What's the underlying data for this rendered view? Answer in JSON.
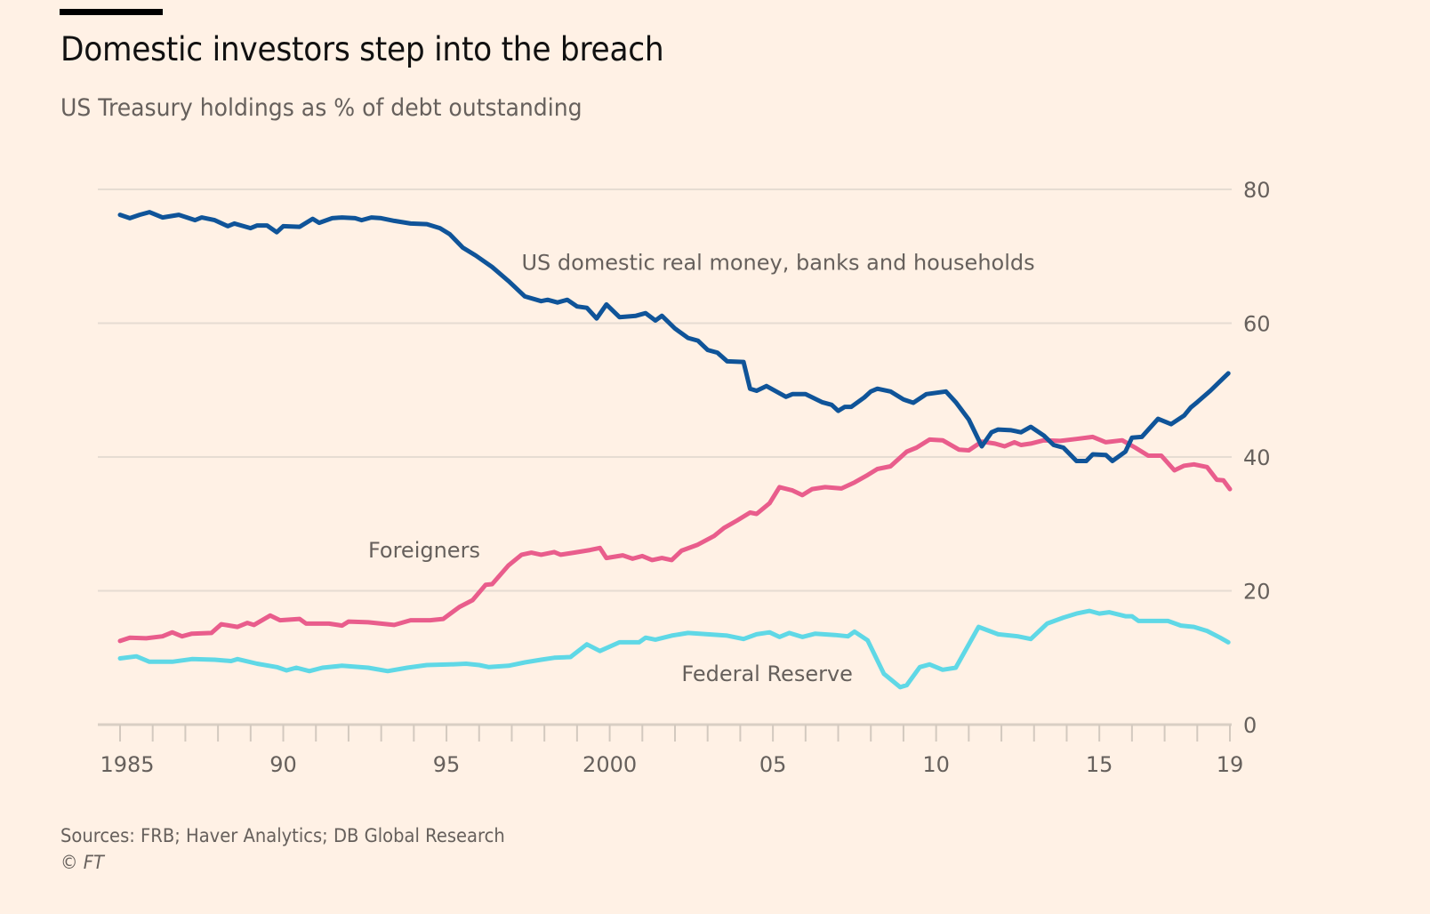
{
  "header": {
    "title": "Domestic investors step into the breach",
    "subtitle": "US Treasury holdings as % of debt outstanding"
  },
  "footer": {
    "sources": "Sources: FRB; Haver Analytics; DB Global Research",
    "copyright_symbol": "©",
    "copyright_brand": "FT"
  },
  "chart_data": {
    "type": "line",
    "title": "Domestic investors step into the breach",
    "subtitle": "US Treasury holdings as % of debt outstanding",
    "xlabel": "",
    "ylabel": "% of debt outstanding",
    "xlim": [
      1985,
      2019
    ],
    "ylim": [
      0,
      80
    ],
    "yticks": [
      0,
      20,
      40,
      60,
      80
    ],
    "y_tick_labels": [
      "0",
      "20",
      "40",
      "60",
      "80"
    ],
    "y_axis_position": "right",
    "xticks": [
      1985,
      1990,
      1995,
      2000,
      2005,
      2010,
      2015,
      2019
    ],
    "x_tick_labels": [
      "1985",
      "90",
      "95",
      "2000",
      "05",
      "10",
      "15",
      "19"
    ],
    "x_minor_ticks": "yearly",
    "grid": true,
    "legend": "none (direct line labels)",
    "series": [
      {
        "name": "US domestic real money, banks and households",
        "color": "#0f5499",
        "label_anchor": {
          "x": 1997.3,
          "y": 68
        },
        "points": [
          [
            1985.0,
            76.2
          ],
          [
            1985.3,
            75.7
          ],
          [
            1985.6,
            76.2
          ],
          [
            1985.9,
            76.6
          ],
          [
            1986.3,
            75.8
          ],
          [
            1986.8,
            76.2
          ],
          [
            1987.3,
            75.4
          ],
          [
            1987.5,
            75.8
          ],
          [
            1987.9,
            75.4
          ],
          [
            1988.3,
            74.5
          ],
          [
            1988.5,
            74.9
          ],
          [
            1989.0,
            74.2
          ],
          [
            1989.2,
            74.6
          ],
          [
            1989.5,
            74.6
          ],
          [
            1989.8,
            73.6
          ],
          [
            1990.0,
            74.5
          ],
          [
            1990.5,
            74.4
          ],
          [
            1990.9,
            75.6
          ],
          [
            1991.1,
            75.0
          ],
          [
            1991.5,
            75.7
          ],
          [
            1991.8,
            75.8
          ],
          [
            1992.2,
            75.7
          ],
          [
            1992.4,
            75.4
          ],
          [
            1992.7,
            75.8
          ],
          [
            1993.0,
            75.7
          ],
          [
            1993.4,
            75.3
          ],
          [
            1993.9,
            74.9
          ],
          [
            1994.4,
            74.8
          ],
          [
            1994.8,
            74.2
          ],
          [
            1995.1,
            73.3
          ],
          [
            1995.5,
            71.3
          ],
          [
            1995.9,
            70.1
          ],
          [
            1996.4,
            68.4
          ],
          [
            1996.9,
            66.3
          ],
          [
            1997.4,
            64.0
          ],
          [
            1997.9,
            63.3
          ],
          [
            1998.1,
            63.5
          ],
          [
            1998.4,
            63.1
          ],
          [
            1998.7,
            63.5
          ],
          [
            1999.0,
            62.5
          ],
          [
            1999.3,
            62.3
          ],
          [
            1999.6,
            60.7
          ],
          [
            1999.9,
            62.8
          ],
          [
            2000.3,
            60.9
          ],
          [
            2000.8,
            61.1
          ],
          [
            2001.1,
            61.5
          ],
          [
            2001.4,
            60.4
          ],
          [
            2001.6,
            61.1
          ],
          [
            2002.0,
            59.2
          ],
          [
            2002.4,
            57.8
          ],
          [
            2002.7,
            57.4
          ],
          [
            2003.0,
            56.0
          ],
          [
            2003.3,
            55.6
          ],
          [
            2003.6,
            54.3
          ],
          [
            2004.1,
            54.2
          ],
          [
            2004.3,
            50.2
          ],
          [
            2004.5,
            49.9
          ],
          [
            2004.8,
            50.6
          ],
          [
            2005.4,
            49.0
          ],
          [
            2005.6,
            49.4
          ],
          [
            2006.0,
            49.4
          ],
          [
            2006.5,
            48.2
          ],
          [
            2006.8,
            47.8
          ],
          [
            2007.0,
            46.9
          ],
          [
            2007.2,
            47.5
          ],
          [
            2007.4,
            47.5
          ],
          [
            2007.8,
            48.9
          ],
          [
            2008.0,
            49.8
          ],
          [
            2008.2,
            50.2
          ],
          [
            2008.6,
            49.8
          ],
          [
            2009.0,
            48.6
          ],
          [
            2009.3,
            48.1
          ],
          [
            2009.7,
            49.4
          ],
          [
            2010.3,
            49.8
          ],
          [
            2010.6,
            48.2
          ],
          [
            2011.0,
            45.6
          ],
          [
            2011.4,
            41.6
          ],
          [
            2011.7,
            43.7
          ],
          [
            2011.9,
            44.1
          ],
          [
            2012.3,
            44.0
          ],
          [
            2012.6,
            43.7
          ],
          [
            2012.9,
            44.5
          ],
          [
            2013.3,
            43.2
          ],
          [
            2013.6,
            41.8
          ],
          [
            2013.9,
            41.4
          ],
          [
            2014.3,
            39.4
          ],
          [
            2014.6,
            39.4
          ],
          [
            2014.8,
            40.4
          ],
          [
            2015.2,
            40.3
          ],
          [
            2015.4,
            39.4
          ],
          [
            2015.8,
            40.8
          ],
          [
            2016.0,
            42.9
          ],
          [
            2016.3,
            43.0
          ],
          [
            2016.8,
            45.7
          ],
          [
            2017.2,
            44.9
          ],
          [
            2017.6,
            46.2
          ],
          [
            2017.8,
            47.4
          ],
          [
            2018.0,
            48.2
          ],
          [
            2018.4,
            49.9
          ],
          [
            2018.8,
            51.8
          ],
          [
            2018.95,
            52.5
          ]
        ]
      },
      {
        "name": "Foreigners",
        "color": "#e95d8c",
        "label_anchor": {
          "x": 1992.6,
          "y": 25
        },
        "points": [
          [
            1985.0,
            12.5
          ],
          [
            1985.3,
            13.0
          ],
          [
            1985.8,
            12.9
          ],
          [
            1986.3,
            13.2
          ],
          [
            1986.6,
            13.8
          ],
          [
            1986.9,
            13.2
          ],
          [
            1987.2,
            13.6
          ],
          [
            1987.8,
            13.7
          ],
          [
            1988.1,
            15.0
          ],
          [
            1988.6,
            14.6
          ],
          [
            1988.9,
            15.2
          ],
          [
            1989.1,
            14.9
          ],
          [
            1989.6,
            16.3
          ],
          [
            1989.9,
            15.6
          ],
          [
            1990.5,
            15.8
          ],
          [
            1990.7,
            15.1
          ],
          [
            1991.4,
            15.1
          ],
          [
            1991.8,
            14.8
          ],
          [
            1992.0,
            15.4
          ],
          [
            1992.6,
            15.3
          ],
          [
            1993.0,
            15.1
          ],
          [
            1993.4,
            14.9
          ],
          [
            1993.9,
            15.6
          ],
          [
            1994.5,
            15.6
          ],
          [
            1994.9,
            15.8
          ],
          [
            1995.4,
            17.6
          ],
          [
            1995.8,
            18.6
          ],
          [
            1996.2,
            20.9
          ],
          [
            1996.4,
            21.0
          ],
          [
            1996.9,
            23.8
          ],
          [
            1997.3,
            25.4
          ],
          [
            1997.6,
            25.7
          ],
          [
            1997.9,
            25.4
          ],
          [
            1998.3,
            25.8
          ],
          [
            1998.5,
            25.4
          ],
          [
            1998.9,
            25.7
          ],
          [
            1999.4,
            26.1
          ],
          [
            1999.7,
            26.4
          ],
          [
            1999.9,
            24.9
          ],
          [
            2000.4,
            25.3
          ],
          [
            2000.7,
            24.8
          ],
          [
            2001.0,
            25.2
          ],
          [
            2001.3,
            24.6
          ],
          [
            2001.6,
            24.9
          ],
          [
            2001.9,
            24.6
          ],
          [
            2002.2,
            26.0
          ],
          [
            2002.7,
            26.9
          ],
          [
            2003.2,
            28.2
          ],
          [
            2003.5,
            29.4
          ],
          [
            2003.9,
            30.5
          ],
          [
            2004.3,
            31.7
          ],
          [
            2004.5,
            31.5
          ],
          [
            2004.9,
            33.1
          ],
          [
            2005.2,
            35.5
          ],
          [
            2005.6,
            35.0
          ],
          [
            2005.9,
            34.3
          ],
          [
            2006.2,
            35.2
          ],
          [
            2006.6,
            35.5
          ],
          [
            2007.1,
            35.3
          ],
          [
            2007.5,
            36.2
          ],
          [
            2007.9,
            37.3
          ],
          [
            2008.2,
            38.2
          ],
          [
            2008.6,
            38.6
          ],
          [
            2009.1,
            40.8
          ],
          [
            2009.4,
            41.4
          ],
          [
            2009.8,
            42.6
          ],
          [
            2010.2,
            42.5
          ],
          [
            2010.7,
            41.1
          ],
          [
            2011.0,
            41.0
          ],
          [
            2011.4,
            42.3
          ],
          [
            2011.8,
            42.0
          ],
          [
            2012.1,
            41.6
          ],
          [
            2012.4,
            42.2
          ],
          [
            2012.6,
            41.8
          ],
          [
            2012.9,
            42.0
          ],
          [
            2013.3,
            42.5
          ],
          [
            2013.8,
            42.4
          ],
          [
            2014.3,
            42.7
          ],
          [
            2014.8,
            43.0
          ],
          [
            2015.2,
            42.2
          ],
          [
            2015.7,
            42.5
          ],
          [
            2016.1,
            41.4
          ],
          [
            2016.5,
            40.2
          ],
          [
            2016.9,
            40.2
          ],
          [
            2017.3,
            38.0
          ],
          [
            2017.6,
            38.7
          ],
          [
            2017.9,
            38.9
          ],
          [
            2018.3,
            38.5
          ],
          [
            2018.6,
            36.6
          ],
          [
            2018.8,
            36.5
          ],
          [
            2019.0,
            35.2
          ]
        ]
      },
      {
        "name": "Federal Reserve",
        "color": "#5fd8e6",
        "label_anchor": {
          "x": 2002.2,
          "y": 6.5
        },
        "points": [
          [
            1985.0,
            9.9
          ],
          [
            1985.5,
            10.2
          ],
          [
            1985.9,
            9.4
          ],
          [
            1986.6,
            9.4
          ],
          [
            1987.2,
            9.8
          ],
          [
            1987.9,
            9.7
          ],
          [
            1988.4,
            9.5
          ],
          [
            1988.6,
            9.8
          ],
          [
            1989.2,
            9.1
          ],
          [
            1989.8,
            8.6
          ],
          [
            1990.1,
            8.1
          ],
          [
            1990.4,
            8.5
          ],
          [
            1990.8,
            8.0
          ],
          [
            1991.2,
            8.5
          ],
          [
            1991.8,
            8.8
          ],
          [
            1992.6,
            8.5
          ],
          [
            1993.2,
            8.0
          ],
          [
            1993.8,
            8.5
          ],
          [
            1994.4,
            8.9
          ],
          [
            1995.1,
            9.0
          ],
          [
            1995.6,
            9.1
          ],
          [
            1996.0,
            8.9
          ],
          [
            1996.3,
            8.6
          ],
          [
            1996.9,
            8.8
          ],
          [
            1997.4,
            9.3
          ],
          [
            1997.9,
            9.7
          ],
          [
            1998.3,
            10.0
          ],
          [
            1998.8,
            10.1
          ],
          [
            1999.3,
            12.0
          ],
          [
            1999.7,
            11.0
          ],
          [
            2000.3,
            12.3
          ],
          [
            2000.9,
            12.3
          ],
          [
            2001.1,
            13.0
          ],
          [
            2001.4,
            12.7
          ],
          [
            2001.9,
            13.3
          ],
          [
            2002.4,
            13.7
          ],
          [
            2003.0,
            13.5
          ],
          [
            2003.6,
            13.3
          ],
          [
            2004.1,
            12.8
          ],
          [
            2004.5,
            13.5
          ],
          [
            2004.9,
            13.8
          ],
          [
            2005.2,
            13.1
          ],
          [
            2005.5,
            13.7
          ],
          [
            2005.9,
            13.1
          ],
          [
            2006.3,
            13.6
          ],
          [
            2006.9,
            13.4
          ],
          [
            2007.3,
            13.2
          ],
          [
            2007.5,
            13.9
          ],
          [
            2007.9,
            12.6
          ],
          [
            2008.4,
            7.6
          ],
          [
            2008.9,
            5.6
          ],
          [
            2009.1,
            5.9
          ],
          [
            2009.5,
            8.6
          ],
          [
            2009.8,
            9.0
          ],
          [
            2010.2,
            8.2
          ],
          [
            2010.6,
            8.5
          ],
          [
            2011.3,
            14.6
          ],
          [
            2011.9,
            13.5
          ],
          [
            2012.5,
            13.2
          ],
          [
            2012.9,
            12.8
          ],
          [
            2013.4,
            15.1
          ],
          [
            2013.9,
            16.0
          ],
          [
            2014.3,
            16.6
          ],
          [
            2014.7,
            17.0
          ],
          [
            2015.0,
            16.6
          ],
          [
            2015.3,
            16.8
          ],
          [
            2015.8,
            16.2
          ],
          [
            2016.0,
            16.2
          ],
          [
            2016.2,
            15.5
          ],
          [
            2016.8,
            15.5
          ],
          [
            2017.1,
            15.5
          ],
          [
            2017.5,
            14.8
          ],
          [
            2017.9,
            14.6
          ],
          [
            2018.3,
            14.0
          ],
          [
            2018.7,
            13.0
          ],
          [
            2018.95,
            12.3
          ]
        ]
      }
    ]
  }
}
